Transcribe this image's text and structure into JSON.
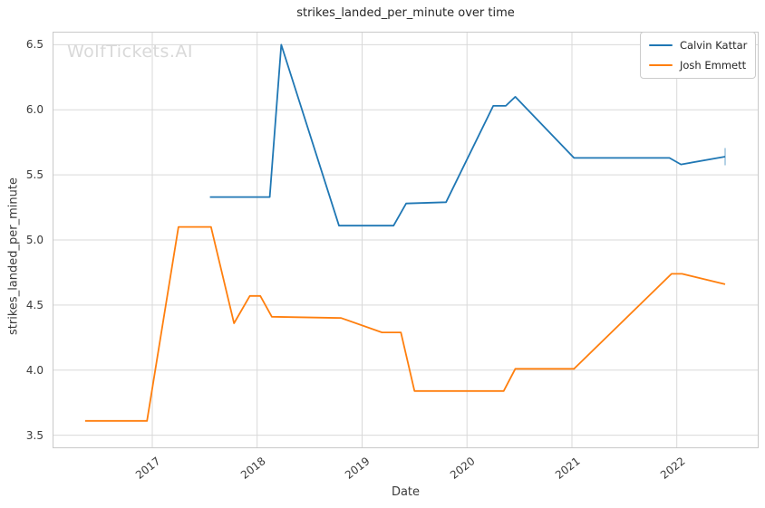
{
  "watermark": "WolfTickets.AI",
  "watermark_color": "#d9d9d9",
  "chart_data": {
    "type": "line",
    "title": "strikes_landed_per_minute over time",
    "xlabel": "Date",
    "ylabel": "strikes_landed_per_minute",
    "grid": true,
    "legend_position": "upper right",
    "xlim": [
      2016.05,
      2022.78
    ],
    "ylim": [
      3.4,
      6.6
    ],
    "x_ticks": [
      2017,
      2018,
      2019,
      2020,
      2021,
      2022
    ],
    "x_tick_labels": [
      "2017",
      "2018",
      "2019",
      "2020",
      "2021",
      "2022"
    ],
    "y_ticks": [
      3.5,
      4.0,
      4.5,
      5.0,
      5.5,
      6.0,
      6.5
    ],
    "y_tick_labels": [
      "3.5",
      "4.0",
      "4.5",
      "5.0",
      "5.5",
      "6.0",
      "6.5"
    ],
    "colors": {
      "grid": "#d9d9d9",
      "spine": "#c9c9c9"
    },
    "series": [
      {
        "name": "Calvin Kattar",
        "color": "#1f77b4",
        "end_tick": true,
        "points": [
          [
            2017.55,
            5.33
          ],
          [
            2018.12,
            5.33
          ],
          [
            2018.23,
            6.5
          ],
          [
            2018.78,
            5.11
          ],
          [
            2019.3,
            5.11
          ],
          [
            2019.42,
            5.28
          ],
          [
            2019.8,
            5.29
          ],
          [
            2020.25,
            6.03
          ],
          [
            2020.37,
            6.03
          ],
          [
            2020.46,
            6.1
          ],
          [
            2021.02,
            5.63
          ],
          [
            2021.93,
            5.63
          ],
          [
            2022.04,
            5.58
          ],
          [
            2022.46,
            5.64
          ]
        ]
      },
      {
        "name": "Josh Emmett",
        "color": "#ff7f0e",
        "end_tick": false,
        "points": [
          [
            2016.36,
            3.61
          ],
          [
            2016.95,
            3.61
          ],
          [
            2017.25,
            5.1
          ],
          [
            2017.56,
            5.1
          ],
          [
            2017.78,
            4.36
          ],
          [
            2017.93,
            4.57
          ],
          [
            2018.03,
            4.57
          ],
          [
            2018.14,
            4.41
          ],
          [
            2018.8,
            4.4
          ],
          [
            2019.19,
            4.29
          ],
          [
            2019.37,
            4.29
          ],
          [
            2019.5,
            3.84
          ],
          [
            2020.35,
            3.84
          ],
          [
            2020.46,
            4.01
          ],
          [
            2021.02,
            4.01
          ],
          [
            2021.95,
            4.74
          ],
          [
            2022.05,
            4.74
          ],
          [
            2022.46,
            4.66
          ]
        ]
      }
    ]
  }
}
